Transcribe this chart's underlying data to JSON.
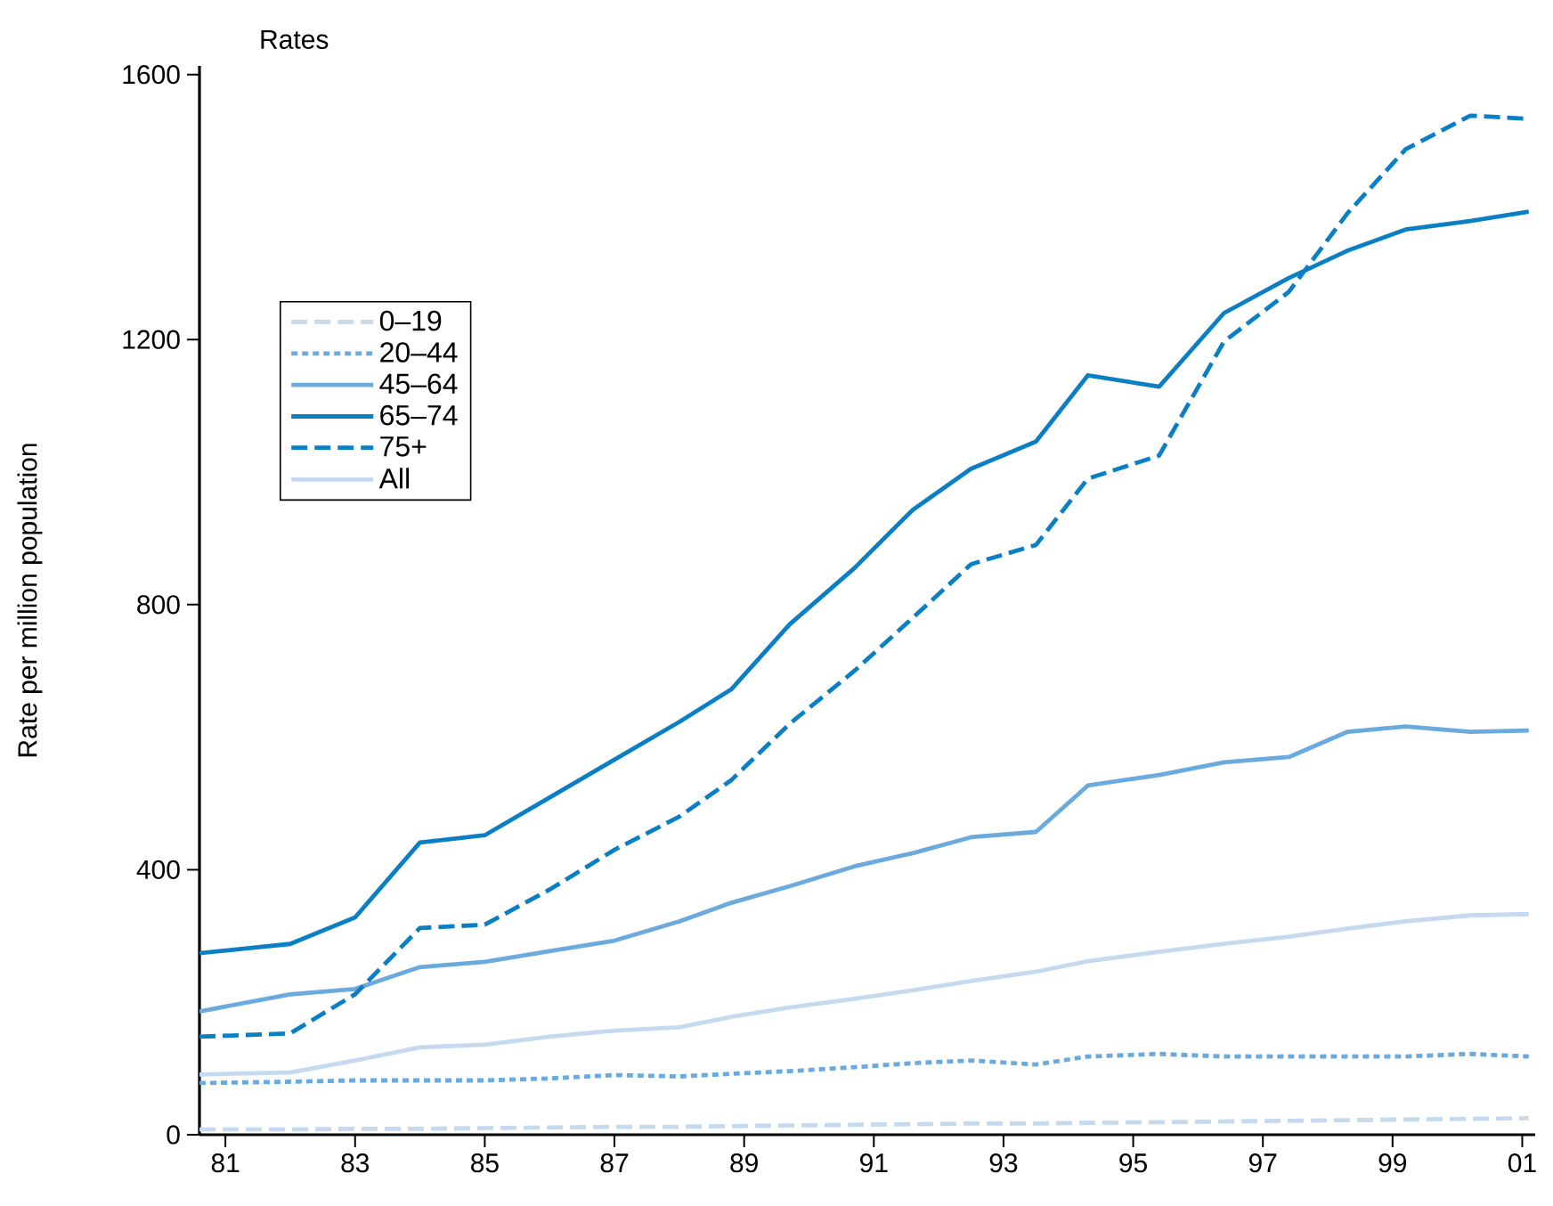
{
  "chart_data": {
    "type": "line",
    "title": "Rates",
    "ylabel": "Rate per million population",
    "x": [
      1980.6,
      1982,
      1983,
      1984,
      1985,
      1986,
      1987,
      1988,
      1988.8,
      1989.7,
      1990.7,
      1991.6,
      1992.5,
      1993.5,
      1994.3,
      1995.4,
      1996.4,
      1997.4,
      1998.3,
      1999.2,
      2000.2,
      2001.1
    ],
    "series": [
      {
        "name": "0–19",
        "color": "#c5d9ef",
        "line_style": "dashed",
        "values": [
          8,
          8,
          9,
          9,
          10,
          11,
          12,
          12,
          13,
          14,
          15,
          16,
          17,
          17,
          18,
          19,
          20,
          21,
          22,
          23,
          24,
          25
        ]
      },
      {
        "name": "20–44",
        "color": "#6aaade",
        "line_style": "dotted",
        "values": [
          78,
          80,
          82,
          82,
          82,
          85,
          90,
          88,
          92,
          96,
          102,
          108,
          112,
          106,
          118,
          122,
          118,
          118,
          118,
          118,
          122,
          118
        ]
      },
      {
        "name": "45–64",
        "color": "#6aaade",
        "line_style": "solid",
        "values": [
          186,
          212,
          220,
          253,
          261,
          277,
          293,
          322,
          350,
          375,
          405,
          425,
          449,
          457,
          527,
          543,
          562,
          570,
          608,
          616,
          608,
          610
        ]
      },
      {
        "name": "65–74",
        "color": "#0a7fc4",
        "line_style": "solid",
        "values": [
          274,
          288,
          328,
          441,
          452,
          509,
          566,
          623,
          672,
          770,
          855,
          943,
          1005,
          1046,
          1146,
          1129,
          1240,
          1293,
          1334,
          1366,
          1379,
          1393
        ]
      },
      {
        "name": "75+",
        "color": "#0a7fc4",
        "line_style": "dashed",
        "values": [
          148,
          153,
          212,
          312,
          317,
          370,
          430,
          480,
          535,
          620,
          700,
          780,
          861,
          890,
          990,
          1025,
          1197,
          1272,
          1390,
          1487,
          1538,
          1533
        ]
      },
      {
        "name": "All",
        "color": "#c5d9ef",
        "line_style": "solid",
        "values": [
          91,
          94,
          112,
          132,
          136,
          148,
          157,
          162,
          178,
          192,
          205,
          218,
          232,
          246,
          262,
          276,
          288,
          299,
          311,
          322,
          331,
          333
        ]
      }
    ],
    "xlim": [
      1980.6,
      2001.2
    ],
    "ylim": [
      0,
      1613
    ],
    "xticks": [
      {
        "value": 1981,
        "label": "81"
      },
      {
        "value": 1983,
        "label": "83"
      },
      {
        "value": 1985,
        "label": "85"
      },
      {
        "value": 1987,
        "label": "87"
      },
      {
        "value": 1989,
        "label": "89"
      },
      {
        "value": 1991,
        "label": "91"
      },
      {
        "value": 1993,
        "label": "93"
      },
      {
        "value": 1995,
        "label": "95"
      },
      {
        "value": 1997,
        "label": "97"
      },
      {
        "value": 1999,
        "label": "99"
      },
      {
        "value": 2001,
        "label": "01"
      }
    ],
    "yticks": [
      0,
      400,
      800,
      1200,
      1600
    ],
    "legend": "top left"
  }
}
